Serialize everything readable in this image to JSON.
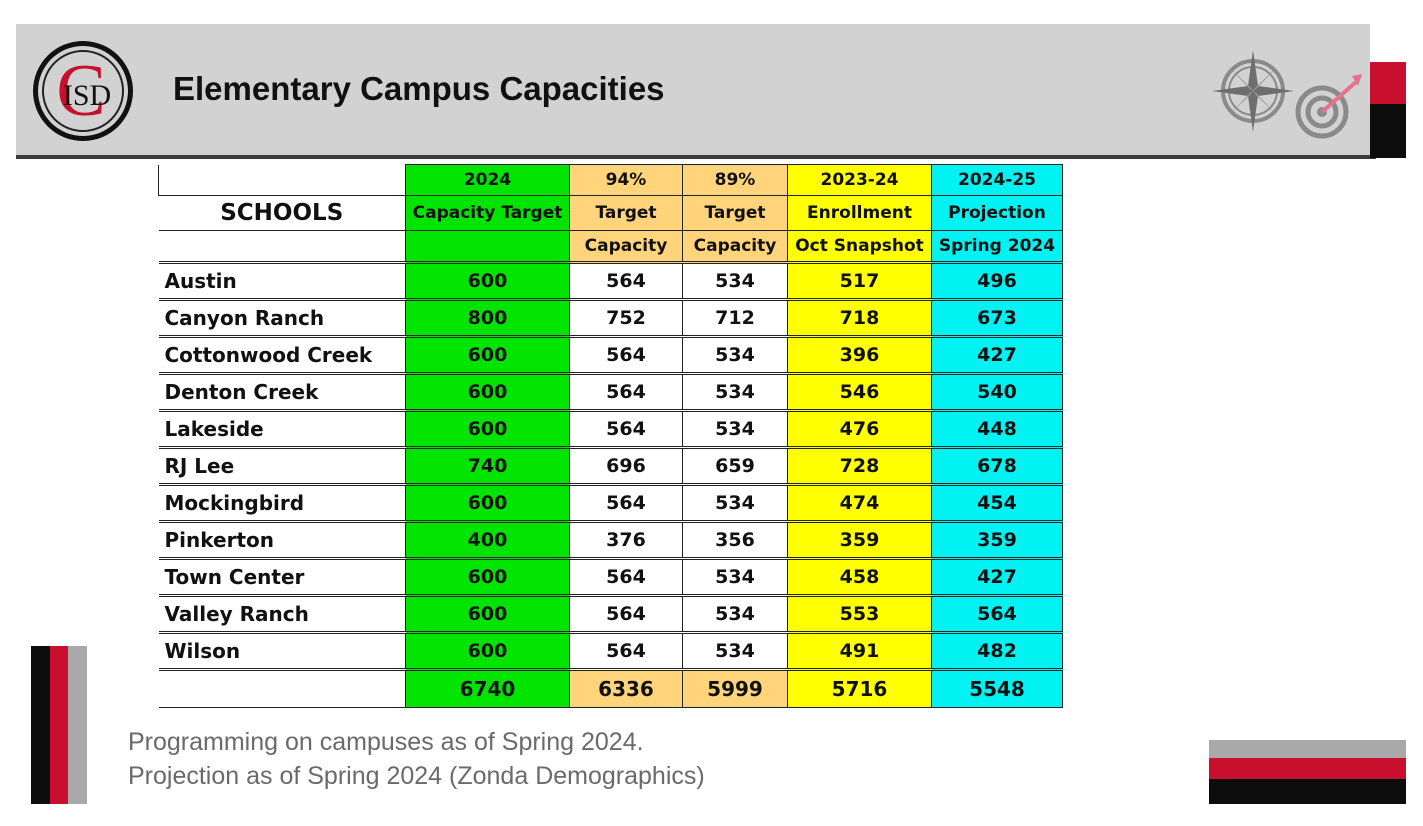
{
  "header": {
    "title": "Elementary Campus Capacities",
    "logo_text": "ISD",
    "logo_letter": "C"
  },
  "table": {
    "schools_label": "SCHOOLS",
    "columns": [
      {
        "line1": "2024",
        "line2": "Capacity Target",
        "line3": ""
      },
      {
        "line1": "94%",
        "line2": "Target",
        "line3": "Capacity"
      },
      {
        "line1": "89%",
        "line2": "Target",
        "line3": "Capacity"
      },
      {
        "line1": "2023-24",
        "line2": "Enrollment",
        "line3": "Oct Snapshot"
      },
      {
        "line1": "2024-25",
        "line2": "Projection",
        "line3": "Spring 2024"
      }
    ],
    "rows": [
      {
        "school": "Austin",
        "v": [
          "600",
          "564",
          "534",
          "517",
          "496"
        ]
      },
      {
        "school": "Canyon Ranch",
        "v": [
          "800",
          "752",
          "712",
          "718",
          "673"
        ]
      },
      {
        "school": "Cottonwood Creek",
        "v": [
          "600",
          "564",
          "534",
          "396",
          "427"
        ]
      },
      {
        "school": "Denton Creek",
        "v": [
          "600",
          "564",
          "534",
          "546",
          "540"
        ]
      },
      {
        "school": "Lakeside",
        "v": [
          "600",
          "564",
          "534",
          "476",
          "448"
        ]
      },
      {
        "school": "RJ Lee",
        "v": [
          "740",
          "696",
          "659",
          "728",
          "678"
        ]
      },
      {
        "school": "Mockingbird",
        "v": [
          "600",
          "564",
          "534",
          "474",
          "454"
        ]
      },
      {
        "school": "Pinkerton",
        "v": [
          "400",
          "376",
          "356",
          "359",
          "359"
        ]
      },
      {
        "school": "Town Center",
        "v": [
          "600",
          "564",
          "534",
          "458",
          "427"
        ]
      },
      {
        "school": "Valley Ranch",
        "v": [
          "600",
          "564",
          "534",
          "553",
          "564"
        ]
      },
      {
        "school": "Wilson",
        "v": [
          "600",
          "564",
          "534",
          "491",
          "482"
        ]
      }
    ],
    "totals": [
      "6740",
      "6336",
      "5999",
      "5716",
      "5548"
    ]
  },
  "footer": {
    "line1": "Programming on campuses as of Spring 2024.",
    "line2": "Projection as of Spring 2024 (Zonda Demographics)"
  },
  "colors": {
    "accent_red": "#c8102e",
    "capacity_green": "#00e400",
    "target_orange": "#ffd47a",
    "enrollment_yellow": "#ffff00",
    "projection_cyan": "#00f2f2"
  },
  "icons": [
    "cisd-logo",
    "compass-icon",
    "target-icon"
  ]
}
